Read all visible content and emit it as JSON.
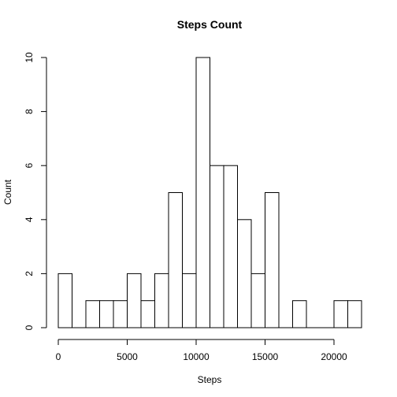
{
  "chart_data": {
    "type": "bar",
    "title": "Steps Count",
    "xlabel": "Steps",
    "ylabel": "Count",
    "bin_width": 1000,
    "bins": [
      {
        "start": 0,
        "end": 1000,
        "count": 2
      },
      {
        "start": 1000,
        "end": 2000,
        "count": 0
      },
      {
        "start": 2000,
        "end": 3000,
        "count": 1
      },
      {
        "start": 3000,
        "end": 4000,
        "count": 1
      },
      {
        "start": 4000,
        "end": 5000,
        "count": 1
      },
      {
        "start": 5000,
        "end": 6000,
        "count": 2
      },
      {
        "start": 6000,
        "end": 7000,
        "count": 1
      },
      {
        "start": 7000,
        "end": 8000,
        "count": 2
      },
      {
        "start": 8000,
        "end": 9000,
        "count": 5
      },
      {
        "start": 9000,
        "end": 10000,
        "count": 2
      },
      {
        "start": 10000,
        "end": 11000,
        "count": 10
      },
      {
        "start": 11000,
        "end": 12000,
        "count": 6
      },
      {
        "start": 12000,
        "end": 13000,
        "count": 6
      },
      {
        "start": 13000,
        "end": 14000,
        "count": 4
      },
      {
        "start": 14000,
        "end": 15000,
        "count": 2
      },
      {
        "start": 15000,
        "end": 16000,
        "count": 5
      },
      {
        "start": 16000,
        "end": 17000,
        "count": 0
      },
      {
        "start": 17000,
        "end": 18000,
        "count": 1
      },
      {
        "start": 18000,
        "end": 19000,
        "count": 0
      },
      {
        "start": 19000,
        "end": 20000,
        "count": 0
      },
      {
        "start": 20000,
        "end": 21000,
        "count": 1
      },
      {
        "start": 21000,
        "end": 22000,
        "count": 1
      }
    ],
    "xlim": [
      0,
      22000
    ],
    "ylim": [
      0,
      10
    ],
    "x_ticks": [
      0,
      5000,
      10000,
      15000,
      20000
    ],
    "y_ticks": [
      0,
      2,
      4,
      6,
      8,
      10
    ],
    "grid": false,
    "colors": {
      "bar_fill": "#ffffff",
      "bar_stroke": "#000000",
      "axis": "#000000",
      "background": "#ffffff"
    }
  }
}
